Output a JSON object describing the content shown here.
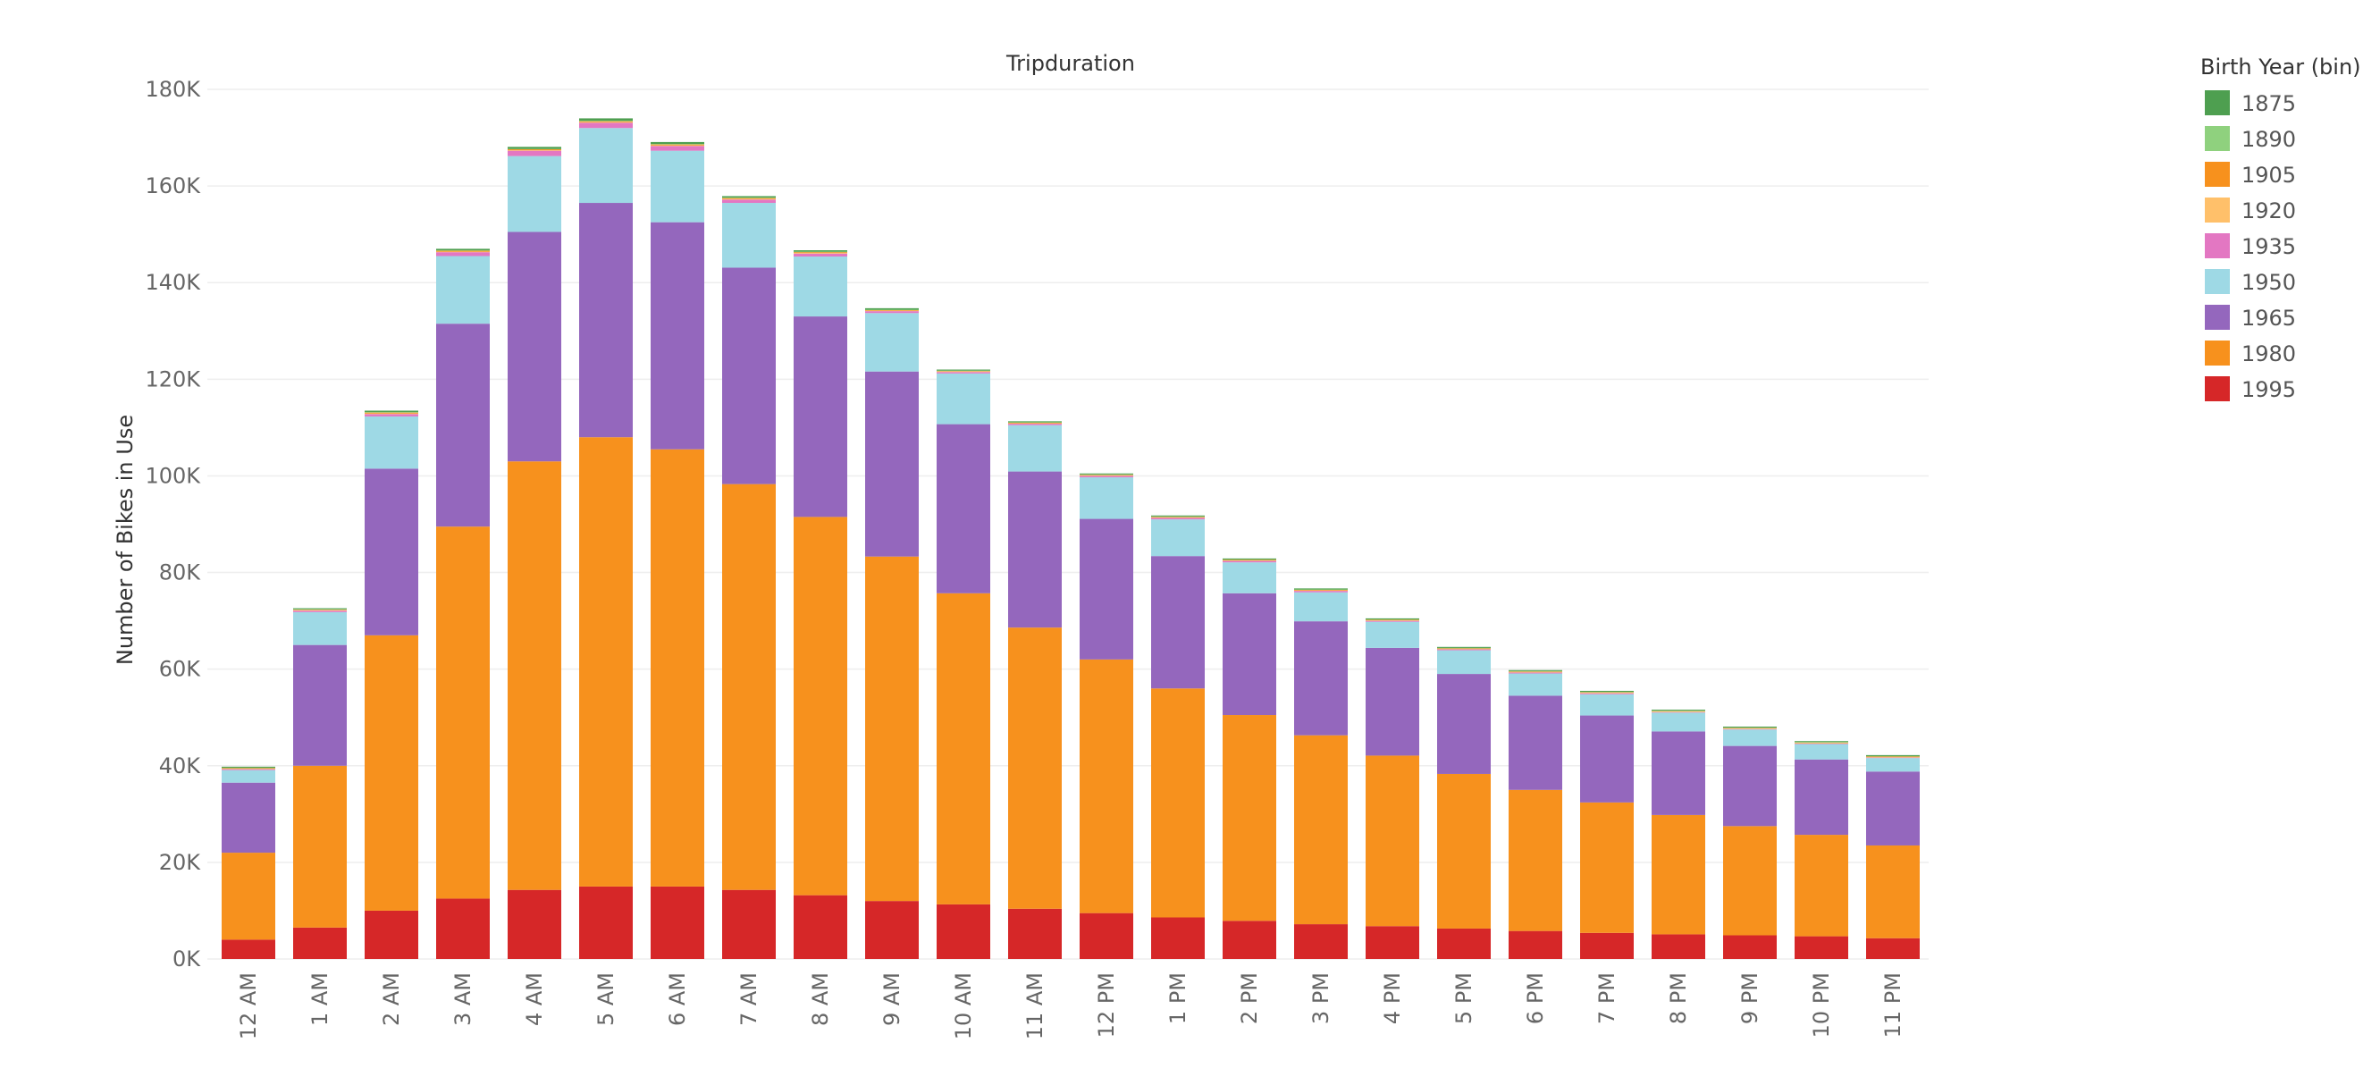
{
  "chart_data": {
    "type": "bar",
    "stacked": true,
    "title": "Tripduration",
    "xlabel": "",
    "ylabel": "Number of Bikes in Use",
    "ylim": [
      0,
      180000
    ],
    "yticks": [
      0,
      20000,
      40000,
      60000,
      80000,
      100000,
      120000,
      140000,
      160000,
      180000
    ],
    "ytick_labels": [
      "0K",
      "20K",
      "40K",
      "60K",
      "80K",
      "100K",
      "120K",
      "140K",
      "160K",
      "180K"
    ],
    "grid": true,
    "legend": {
      "title": "Birth Year (bin)",
      "placement": "right"
    },
    "categories": [
      "12 AM",
      "1 AM",
      "2 AM",
      "3 AM",
      "4 AM",
      "5 AM",
      "6 AM",
      "7 AM",
      "8 AM",
      "9 AM",
      "10 AM",
      "11 AM",
      "12 PM",
      "1 PM",
      "2 PM",
      "3 PM",
      "4 PM",
      "5 PM",
      "6 PM",
      "7 PM",
      "8 PM",
      "9 PM",
      "10 PM",
      "11 PM"
    ],
    "series": [
      {
        "name": "1995",
        "color": "#d62728",
        "values": [
          4000,
          6500,
          10000,
          12500,
          14300,
          15000,
          15000,
          14300,
          13200,
          12000,
          11300,
          10400,
          9500,
          8600,
          7900,
          7200,
          6800,
          6300,
          5800,
          5400,
          5100,
          4900,
          4700,
          4300
        ]
      },
      {
        "name": "1980",
        "color": "#f7911d",
        "values": [
          18000,
          33500,
          57000,
          77000,
          88700,
          93000,
          90500,
          84000,
          78300,
          71300,
          64400,
          58200,
          52500,
          47400,
          42600,
          39100,
          35300,
          32000,
          29200,
          27000,
          24700,
          22600,
          21000,
          19200
        ]
      },
      {
        "name": "1965",
        "color": "#9467bd",
        "values": [
          14500,
          25000,
          34500,
          42000,
          47500,
          48500,
          47000,
          44800,
          41500,
          38300,
          35000,
          32300,
          29100,
          27400,
          25200,
          23600,
          22300,
          20700,
          19500,
          18000,
          17300,
          16600,
          15600,
          15300
        ]
      },
      {
        "name": "1950",
        "color": "#9ed9e5",
        "values": [
          2600,
          6800,
          10800,
          14000,
          15700,
          15500,
          14800,
          13400,
          12400,
          12100,
          10500,
          9600,
          8600,
          7600,
          6400,
          6000,
          5400,
          4900,
          4600,
          4400,
          3900,
          3400,
          3200,
          2800
        ]
      },
      {
        "name": "1935",
        "color": "#e377c2",
        "values": [
          200,
          300,
          500,
          800,
          1100,
          1100,
          1000,
          700,
          600,
          400,
          300,
          300,
          300,
          300,
          300,
          300,
          200,
          200,
          200,
          200,
          100,
          100,
          100,
          100
        ]
      },
      {
        "name": "1920",
        "color": "#ffc06a",
        "values": [
          100,
          100,
          100,
          100,
          100,
          100,
          100,
          100,
          100,
          100,
          100,
          100,
          100,
          100,
          100,
          100,
          100,
          100,
          100,
          100,
          100,
          100,
          100,
          100
        ]
      },
      {
        "name": "1905",
        "color": "#f7911d",
        "values": [
          100,
          100,
          200,
          200,
          200,
          200,
          200,
          200,
          200,
          100,
          100,
          100,
          100,
          100,
          100,
          100,
          100,
          100,
          100,
          100,
          100,
          100,
          100,
          100
        ]
      },
      {
        "name": "1890",
        "color": "#8fd17e",
        "values": [
          100,
          100,
          100,
          100,
          100,
          100,
          100,
          100,
          100,
          100,
          100,
          100,
          100,
          100,
          100,
          100,
          100,
          100,
          100,
          100,
          100,
          100,
          100,
          100
        ]
      },
      {
        "name": "1875",
        "color": "#4e9f50",
        "values": [
          200,
          200,
          300,
          300,
          400,
          500,
          400,
          300,
          300,
          300,
          200,
          200,
          200,
          200,
          200,
          200,
          200,
          200,
          200,
          200,
          200,
          200,
          200,
          200
        ]
      }
    ],
    "legend_order": [
      "1875",
      "1890",
      "1905",
      "1920",
      "1935",
      "1950",
      "1965",
      "1980",
      "1995"
    ]
  }
}
